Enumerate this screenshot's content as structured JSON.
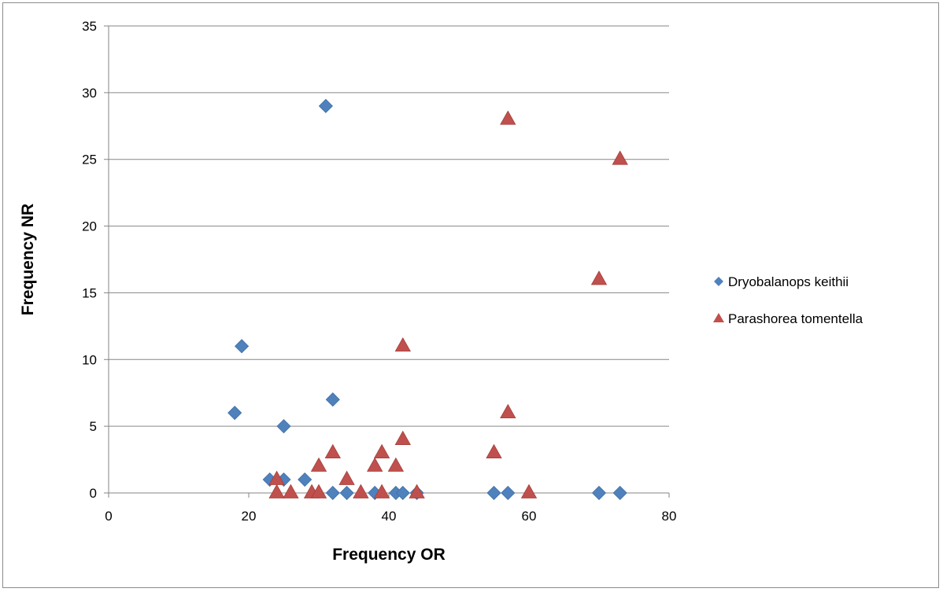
{
  "chart_data": {
    "type": "scatter",
    "title": "",
    "xlabel": "Frequency OR",
    "ylabel": "Frequency NR",
    "xlim": [
      0,
      80
    ],
    "ylim": [
      0,
      35
    ],
    "x_ticks": [
      "0",
      "20",
      "40",
      "60",
      "80"
    ],
    "y_ticks": [
      "0",
      "5",
      "10",
      "15",
      "20",
      "25",
      "30",
      "35"
    ],
    "x_tick_values": [
      0,
      20,
      40,
      60,
      80
    ],
    "y_tick_values": [
      0,
      5,
      10,
      15,
      20,
      25,
      30,
      35
    ],
    "grid": "horizontal",
    "legend_position": "right",
    "series": [
      {
        "name": "Dryobalanops keithii",
        "marker": "diamond",
        "color": "#4f81bd",
        "points": [
          [
            18,
            6
          ],
          [
            19,
            11
          ],
          [
            23,
            1
          ],
          [
            25,
            1
          ],
          [
            25,
            5
          ],
          [
            28,
            1
          ],
          [
            31,
            29
          ],
          [
            32,
            7
          ],
          [
            32,
            0
          ],
          [
            34,
            0
          ],
          [
            38,
            0
          ],
          [
            41,
            0
          ],
          [
            42,
            0
          ],
          [
            44,
            0
          ],
          [
            55,
            0
          ],
          [
            57,
            0
          ],
          [
            70,
            0
          ],
          [
            73,
            0
          ]
        ]
      },
      {
        "name": "Parashorea tomentella",
        "marker": "triangle",
        "color": "#c0504d",
        "points": [
          [
            24,
            1
          ],
          [
            24,
            0
          ],
          [
            26,
            0
          ],
          [
            29,
            0
          ],
          [
            30,
            2
          ],
          [
            30,
            0
          ],
          [
            32,
            3
          ],
          [
            34,
            1
          ],
          [
            36,
            0
          ],
          [
            38,
            2
          ],
          [
            39,
            3
          ],
          [
            39,
            0
          ],
          [
            41,
            2
          ],
          [
            42,
            4
          ],
          [
            42,
            11
          ],
          [
            44,
            0
          ],
          [
            55,
            3
          ],
          [
            57,
            28
          ],
          [
            57,
            6
          ],
          [
            60,
            0
          ],
          [
            70,
            16
          ],
          [
            73,
            25
          ]
        ]
      }
    ]
  }
}
